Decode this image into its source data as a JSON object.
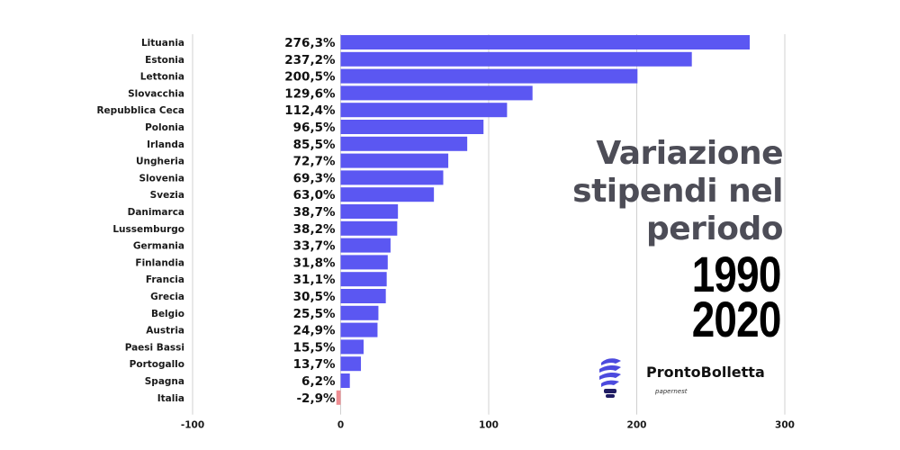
{
  "chart_data": {
    "type": "bar",
    "orientation": "horizontal",
    "title_lines": [
      "Variazione",
      "stipendi nel",
      "periodo"
    ],
    "years_lines": [
      "1990",
      "2020"
    ],
    "categories": [
      "Lituania",
      "Estonia",
      "Lettonia",
      "Slovacchia",
      "Repubblica Ceca",
      "Polonia",
      "Irlanda",
      "Ungheria",
      "Slovenia",
      "Svezia",
      "Danimarca",
      "Lussemburgo",
      "Germania",
      "Finlandia",
      "Francia",
      "Grecia",
      "Belgio",
      "Austria",
      "Paesi Bassi",
      "Portogallo",
      "Spagna",
      "Italia"
    ],
    "values": [
      276.3,
      237.2,
      200.5,
      129.6,
      112.4,
      96.5,
      85.5,
      72.7,
      69.3,
      63.0,
      38.7,
      38.2,
      33.7,
      31.8,
      31.1,
      30.5,
      25.5,
      24.9,
      15.5,
      13.7,
      6.2,
      -2.9
    ],
    "value_labels": [
      "276,3%",
      "237,2%",
      "200,5%",
      "129,6%",
      "112,4%",
      "96,5%",
      "85,5%",
      "72,7%",
      "69,3%",
      "63,0%",
      "38,7%",
      "38,2%",
      "33,7%",
      "31,8%",
      "31,1%",
      "30,5%",
      "25,5%",
      "24,9%",
      "15,5%",
      "13,7%",
      "6,2%",
      "-2,9%"
    ],
    "xlim": [
      -100,
      300
    ],
    "xticks": [
      -100,
      0,
      100,
      200,
      300
    ],
    "xtick_labels": [
      "-100",
      "0",
      "100",
      "200",
      "300"
    ],
    "grid": true,
    "colors": {
      "positive": "#5b57f2",
      "negative": "#ee8d92",
      "grid": "#d0d0d0"
    }
  },
  "brand": {
    "name": "ProntoBolletta",
    "sub": "papernest",
    "icon": "lightbulb-icon",
    "icon_colors": {
      "primary": "#4c4ade",
      "dark": "#1f1c63"
    }
  }
}
